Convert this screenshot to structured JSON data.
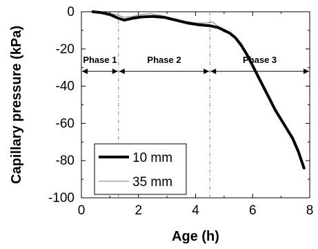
{
  "chart_data": {
    "type": "line",
    "xlabel": "Age (h)",
    "ylabel": "Capillary pressure (kPa)",
    "xlim": [
      0,
      8
    ],
    "ylim": [
      -100,
      0
    ],
    "xticks": [
      0,
      2,
      4,
      6,
      8
    ],
    "yticks": [
      0,
      -20,
      -40,
      -60,
      -80,
      -100
    ],
    "grid": false,
    "legend_position": "bottom-left",
    "series": [
      {
        "name": "10 mm",
        "style": "thick",
        "color": "#000000",
        "x": [
          0.4,
          0.7,
          1.0,
          1.3,
          1.5,
          1.8,
          2.1,
          2.5,
          2.9,
          3.3,
          3.7,
          4.1,
          4.5,
          4.8,
          5.0,
          5.2,
          5.4,
          5.6,
          5.8,
          6.0,
          6.2,
          6.4,
          6.6,
          6.8,
          7.0,
          7.2,
          7.4,
          7.6,
          7.8
        ],
        "y": [
          0,
          -0.5,
          -1.5,
          -3.5,
          -4.5,
          -3.5,
          -2.8,
          -2.5,
          -3.0,
          -4.5,
          -6.0,
          -7.0,
          -7.5,
          -8.5,
          -10.0,
          -11.5,
          -14.0,
          -18.0,
          -23.0,
          -29.0,
          -35.0,
          -41.0,
          -47.0,
          -53.0,
          -58.0,
          -63.0,
          -68.0,
          -75.0,
          -84.0
        ]
      },
      {
        "name": "35 mm",
        "style": "thin",
        "color": "#555555",
        "x": [
          0.4,
          0.8,
          1.2,
          1.5,
          1.8,
          2.1,
          2.4,
          2.8,
          3.2,
          3.6,
          4.0,
          4.4,
          4.6,
          4.8,
          5.0
        ],
        "y": [
          0,
          -0.5,
          -1.5,
          -3.0,
          -2.5,
          -1.5,
          -1.0,
          -2.0,
          -3.5,
          -5.0,
          -6.0,
          -6.0,
          -5.5,
          -8.0,
          -11.0
        ]
      }
    ],
    "phases": [
      {
        "label": "Phase 1",
        "x_start": 0,
        "x_end": 1.3,
        "y": -32
      },
      {
        "label": "Phase 2",
        "x_start": 1.3,
        "x_end": 4.5,
        "y": -32
      },
      {
        "label": "Phase 3",
        "x_start": 4.5,
        "x_end": 8.0,
        "y": -32
      }
    ],
    "vlines": [
      1.3,
      4.5
    ]
  }
}
